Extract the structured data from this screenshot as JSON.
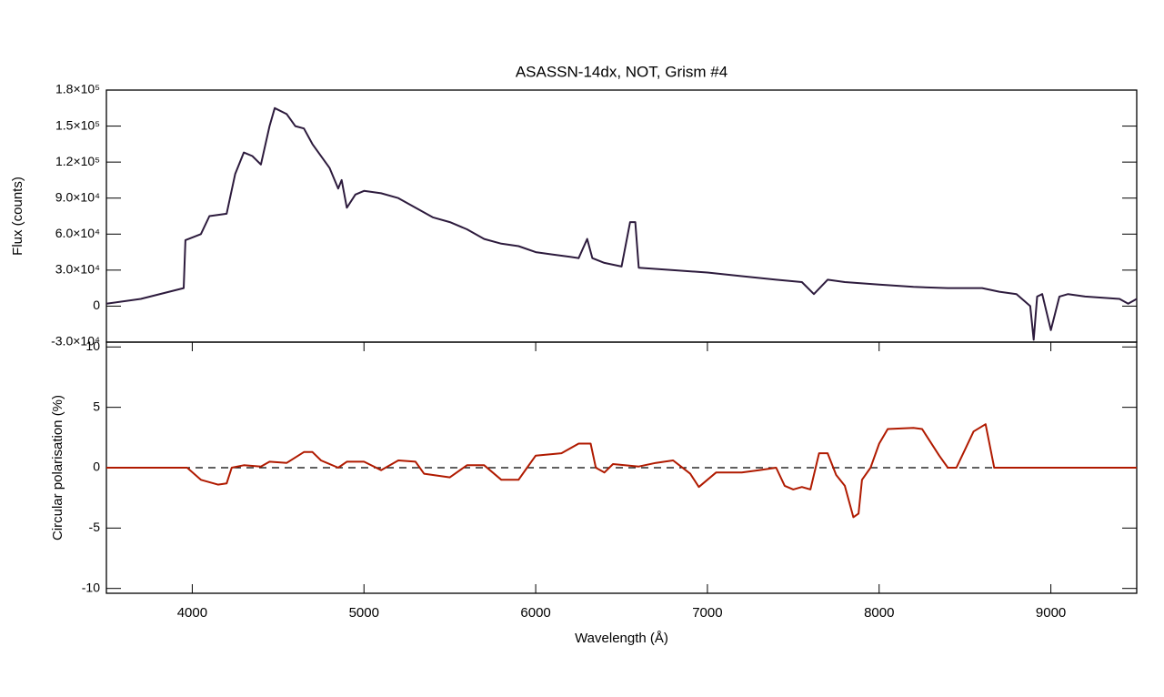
{
  "chart_data": [
    {
      "type": "line",
      "title": "ASASSN-14dx, NOT, Grism #4",
      "ylabel": "Flux (counts)",
      "xlim": [
        3500,
        9500
      ],
      "ylim": [
        -30000,
        180000
      ],
      "yticks": [
        {
          "value": -30000,
          "label": "-3.0×10⁴"
        },
        0,
        {
          "value": 30000,
          "label": "3.0×10⁴"
        },
        {
          "value": 60000,
          "label": "6.0×10⁴"
        },
        {
          "value": 90000,
          "label": "9.0×10⁴"
        },
        {
          "value": 120000,
          "label": "1.2×10⁵"
        },
        {
          "value": 150000,
          "label": "1.5×10⁵"
        },
        {
          "value": 180000,
          "label": "1.8×10⁵"
        }
      ],
      "x": [
        3500,
        3700,
        3950,
        3960,
        4050,
        4100,
        4200,
        4250,
        4300,
        4350,
        4400,
        4450,
        4480,
        4550,
        4600,
        4650,
        4700,
        4800,
        4850,
        4870,
        4900,
        4950,
        5000,
        5100,
        5200,
        5300,
        5400,
        5500,
        5600,
        5700,
        5800,
        5900,
        6000,
        6100,
        6200,
        6250,
        6300,
        6330,
        6400,
        6500,
        6550,
        6580,
        6600,
        6800,
        7000,
        7200,
        7400,
        7550,
        7620,
        7700,
        7800,
        8000,
        8200,
        8400,
        8600,
        8700,
        8800,
        8880,
        8900,
        8920,
        8950,
        9000,
        9050,
        9100,
        9200,
        9400,
        9450,
        9500
      ],
      "series": [
        {
          "color": "#2d1b3d",
          "values": [
            2000,
            6000,
            15000,
            55000,
            60000,
            75000,
            77000,
            110000,
            128000,
            125000,
            118000,
            150000,
            165000,
            160000,
            150000,
            148000,
            135000,
            115000,
            98000,
            105000,
            82000,
            93000,
            96000,
            94000,
            90000,
            82000,
            74000,
            70000,
            64000,
            56000,
            52000,
            50000,
            45000,
            43000,
            41000,
            40000,
            56000,
            40000,
            36000,
            33000,
            70000,
            70000,
            32000,
            30000,
            28000,
            25000,
            22000,
            20000,
            10000,
            22000,
            20000,
            18000,
            16000,
            15000,
            15000,
            12000,
            10000,
            0,
            -28000,
            8000,
            10000,
            -20000,
            8000,
            10000,
            8000,
            6000,
            2000,
            6000
          ]
        }
      ]
    },
    {
      "type": "line",
      "ylabel": "Circular polarisation (%)",
      "xlabel": "Wavelength (Å)",
      "xlim": [
        3500,
        9500
      ],
      "ylim": [
        -10.4,
        10.4
      ],
      "xticks": [
        4000,
        5000,
        6000,
        7000,
        8000,
        9000
      ],
      "yticks": [
        -10,
        -5,
        0,
        5,
        10
      ],
      "x": [
        3500,
        3970,
        4050,
        4150,
        4200,
        4230,
        4300,
        4400,
        4450,
        4550,
        4650,
        4700,
        4750,
        4850,
        4900,
        5000,
        5100,
        5200,
        5300,
        5350,
        5500,
        5600,
        5700,
        5800,
        5900,
        5950,
        6000,
        6150,
        6250,
        6320,
        6350,
        6400,
        6450,
        6600,
        6700,
        6800,
        6900,
        6950,
        7050,
        7200,
        7300,
        7400,
        7450,
        7500,
        7550,
        7600,
        7650,
        7700,
        7750,
        7800,
        7850,
        7880,
        7900,
        7950,
        8000,
        8050,
        8200,
        8250,
        8350,
        8400,
        8450,
        8500,
        8550,
        8620,
        8670,
        9500
      ],
      "series": [
        {
          "color": "#b01a00",
          "values": [
            0,
            0,
            -1,
            -1.4,
            -1.3,
            0,
            0.2,
            0.1,
            0.5,
            0.4,
            1.3,
            1.3,
            0.6,
            0,
            0.5,
            0.5,
            -0.2,
            0.6,
            0.5,
            -0.5,
            -0.8,
            0.2,
            0.2,
            -1,
            -1,
            0,
            1,
            1.2,
            2,
            2,
            0,
            -0.4,
            0.3,
            0.1,
            0.4,
            0.6,
            -0.5,
            -1.6,
            -0.4,
            -0.4,
            -0.2,
            0,
            -1.5,
            -1.8,
            -1.6,
            -1.8,
            1.2,
            1.2,
            -0.6,
            -1.5,
            -4.1,
            -3.8,
            -1,
            0,
            2,
            3.2,
            3.3,
            3.2,
            1,
            0,
            0,
            1.5,
            3,
            3.6,
            0,
            0
          ]
        }
      ]
    }
  ]
}
